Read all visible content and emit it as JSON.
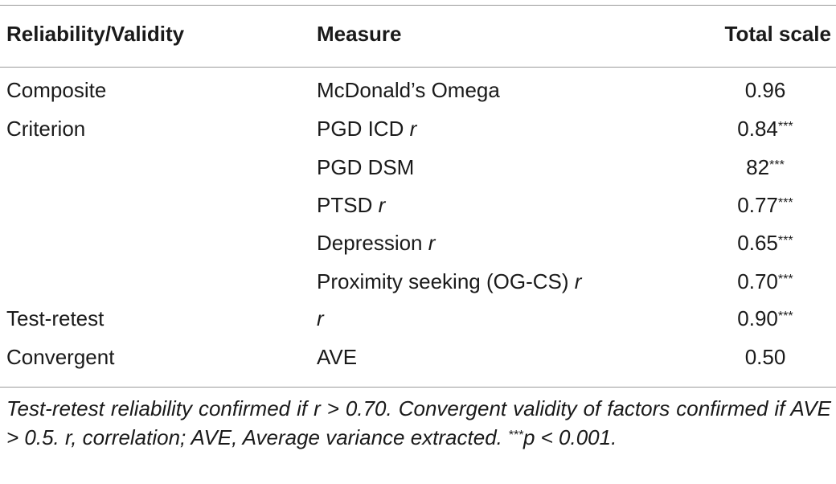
{
  "table": {
    "headers": [
      "Reliability/Validity",
      "Measure",
      "Total scale"
    ],
    "rows": [
      {
        "type": "Composite",
        "measure": "McDonald’s Omega",
        "measure_r": "",
        "value": "0.96",
        "sig": ""
      },
      {
        "type": "Criterion",
        "measure": "PGD ICD ",
        "measure_r": "r",
        "value": "0.84",
        "sig": "***"
      },
      {
        "type": "",
        "measure": "PGD DSM",
        "measure_r": "",
        "value": "82",
        "sig": "***"
      },
      {
        "type": "",
        "measure": "PTSD ",
        "measure_r": "r",
        "value": "0.77",
        "sig": "***"
      },
      {
        "type": "",
        "measure": "Depression ",
        "measure_r": "r",
        "value": "0.65",
        "sig": "***"
      },
      {
        "type": "",
        "measure": "Proximity seeking (OG-CS) ",
        "measure_r": "r",
        "value": "0.70",
        "sig": "***"
      },
      {
        "type": "Test-retest",
        "measure": "",
        "measure_r": "r",
        "value": "0.90",
        "sig": "***"
      },
      {
        "type": "Convergent",
        "measure": "AVE",
        "measure_r": "",
        "value": "0.50",
        "sig": ""
      }
    ]
  },
  "footnote": {
    "text": "Test-retest reliability confirmed if r > 0.70. Convergent validity of factors confirmed if AVE > 0.5. r, correlation; AVE, Average variance extracted.",
    "sig_marker": "***",
    "sig_text": "p < 0.001."
  }
}
